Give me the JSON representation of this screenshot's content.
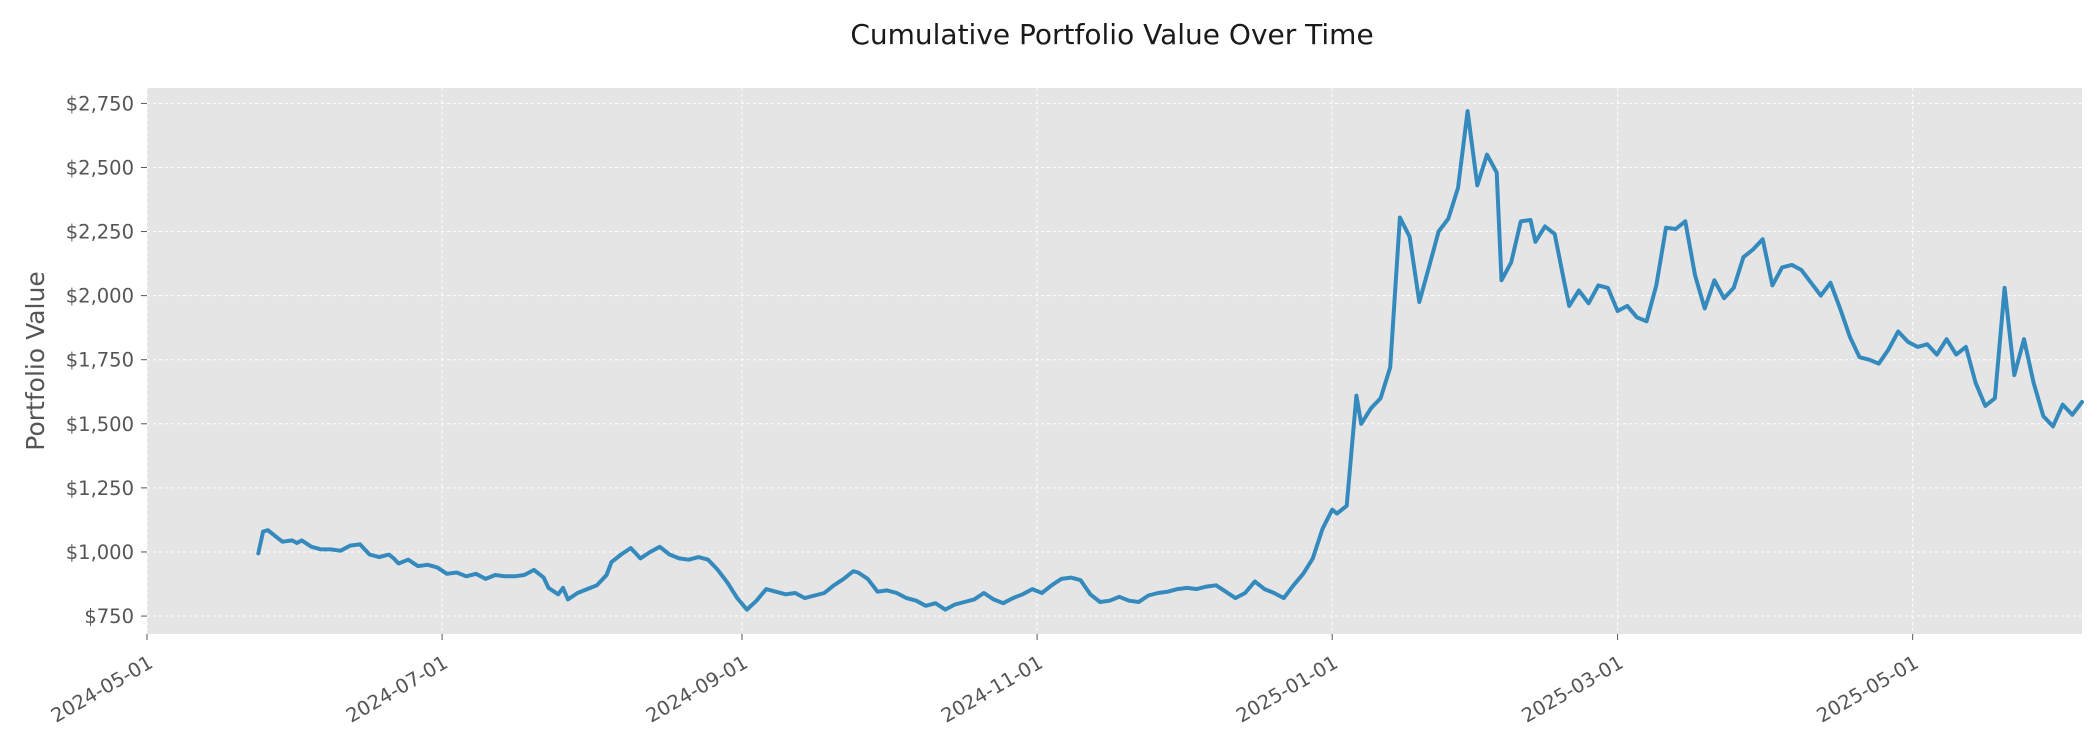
{
  "chart_data": {
    "type": "line",
    "title": "Cumulative Portfolio Value Over Time",
    "xlabel": "",
    "ylabel": "Portfolio Value",
    "xlim": [
      "2024-05-01",
      "2025-06-05"
    ],
    "ylim": [
      680,
      2810
    ],
    "x_ticks": [
      "2024-05-01",
      "2024-07-01",
      "2024-09-01",
      "2024-11-01",
      "2025-01-01",
      "2025-03-01",
      "2025-05-01"
    ],
    "y_ticks": [
      750,
      1000,
      1250,
      1500,
      1750,
      2000,
      2250,
      2500,
      2750
    ],
    "y_tick_labels": [
      "$750",
      "$1,000",
      "$1,250",
      "$1,500",
      "$1,750",
      "$2,000",
      "$2,250",
      "$2,500",
      "$2,750"
    ],
    "grid": true,
    "background": "#e5e5e5",
    "series": [
      {
        "color": "#348abd",
        "points": [
          [
            "2024-05-24",
            995
          ],
          [
            "2024-05-25",
            1080
          ],
          [
            "2024-05-26",
            1085
          ],
          [
            "2024-05-28",
            1055
          ],
          [
            "2024-05-29",
            1040
          ],
          [
            "2024-05-31",
            1045
          ],
          [
            "2024-06-01",
            1035
          ],
          [
            "2024-06-02",
            1045
          ],
          [
            "2024-06-04",
            1020
          ],
          [
            "2024-06-06",
            1010
          ],
          [
            "2024-06-08",
            1010
          ],
          [
            "2024-06-10",
            1005
          ],
          [
            "2024-06-12",
            1025
          ],
          [
            "2024-06-14",
            1030
          ],
          [
            "2024-06-16",
            990
          ],
          [
            "2024-06-18",
            980
          ],
          [
            "2024-06-20",
            990
          ],
          [
            "2024-06-21",
            975
          ],
          [
            "2024-06-22",
            955
          ],
          [
            "2024-06-24",
            970
          ],
          [
            "2024-06-26",
            945
          ],
          [
            "2024-06-28",
            950
          ],
          [
            "2024-06-30",
            940
          ],
          [
            "2024-07-02",
            915
          ],
          [
            "2024-07-04",
            920
          ],
          [
            "2024-07-06",
            905
          ],
          [
            "2024-07-08",
            915
          ],
          [
            "2024-07-10",
            895
          ],
          [
            "2024-07-12",
            910
          ],
          [
            "2024-07-14",
            905
          ],
          [
            "2024-07-16",
            905
          ],
          [
            "2024-07-18",
            910
          ],
          [
            "2024-07-20",
            930
          ],
          [
            "2024-07-22",
            900
          ],
          [
            "2024-07-23",
            860
          ],
          [
            "2024-07-25",
            835
          ],
          [
            "2024-07-26",
            860
          ],
          [
            "2024-07-27",
            815
          ],
          [
            "2024-07-29",
            840
          ],
          [
            "2024-07-31",
            855
          ],
          [
            "2024-08-02",
            870
          ],
          [
            "2024-08-04",
            910
          ],
          [
            "2024-08-05",
            960
          ],
          [
            "2024-08-07",
            990
          ],
          [
            "2024-08-09",
            1015
          ],
          [
            "2024-08-11",
            975
          ],
          [
            "2024-08-13",
            1000
          ],
          [
            "2024-08-15",
            1020
          ],
          [
            "2024-08-17",
            990
          ],
          [
            "2024-08-19",
            975
          ],
          [
            "2024-08-21",
            970
          ],
          [
            "2024-08-23",
            980
          ],
          [
            "2024-08-25",
            970
          ],
          [
            "2024-08-27",
            930
          ],
          [
            "2024-08-29",
            880
          ],
          [
            "2024-08-31",
            820
          ],
          [
            "2024-09-02",
            775
          ],
          [
            "2024-09-04",
            810
          ],
          [
            "2024-09-06",
            855
          ],
          [
            "2024-09-08",
            845
          ],
          [
            "2024-09-10",
            835
          ],
          [
            "2024-09-12",
            840
          ],
          [
            "2024-09-14",
            820
          ],
          [
            "2024-09-16",
            830
          ],
          [
            "2024-09-18",
            840
          ],
          [
            "2024-09-20",
            870
          ],
          [
            "2024-09-22",
            895
          ],
          [
            "2024-09-24",
            925
          ],
          [
            "2024-09-25",
            920
          ],
          [
            "2024-09-27",
            895
          ],
          [
            "2024-09-29",
            845
          ],
          [
            "2024-10-01",
            850
          ],
          [
            "2024-10-03",
            840
          ],
          [
            "2024-10-05",
            820
          ],
          [
            "2024-10-07",
            810
          ],
          [
            "2024-10-09",
            790
          ],
          [
            "2024-10-11",
            800
          ],
          [
            "2024-10-13",
            775
          ],
          [
            "2024-10-15",
            795
          ],
          [
            "2024-10-17",
            805
          ],
          [
            "2024-10-19",
            815
          ],
          [
            "2024-10-21",
            840
          ],
          [
            "2024-10-23",
            815
          ],
          [
            "2024-10-25",
            800
          ],
          [
            "2024-10-27",
            820
          ],
          [
            "2024-10-29",
            835
          ],
          [
            "2024-10-31",
            855
          ],
          [
            "2024-11-02",
            840
          ],
          [
            "2024-11-04",
            870
          ],
          [
            "2024-11-06",
            895
          ],
          [
            "2024-11-08",
            900
          ],
          [
            "2024-11-10",
            890
          ],
          [
            "2024-11-12",
            835
          ],
          [
            "2024-11-14",
            805
          ],
          [
            "2024-11-16",
            810
          ],
          [
            "2024-11-18",
            825
          ],
          [
            "2024-11-20",
            810
          ],
          [
            "2024-11-22",
            805
          ],
          [
            "2024-11-24",
            830
          ],
          [
            "2024-11-26",
            840
          ],
          [
            "2024-11-28",
            845
          ],
          [
            "2024-11-30",
            855
          ],
          [
            "2024-12-02",
            860
          ],
          [
            "2024-12-04",
            855
          ],
          [
            "2024-12-06",
            865
          ],
          [
            "2024-12-08",
            870
          ],
          [
            "2024-12-10",
            845
          ],
          [
            "2024-12-12",
            820
          ],
          [
            "2024-12-14",
            840
          ],
          [
            "2024-12-16",
            885
          ],
          [
            "2024-12-18",
            855
          ],
          [
            "2024-12-20",
            840
          ],
          [
            "2024-12-22",
            820
          ],
          [
            "2024-12-24",
            870
          ],
          [
            "2024-12-26",
            915
          ],
          [
            "2024-12-28",
            975
          ],
          [
            "2024-12-30",
            1090
          ],
          [
            "2025-01-01",
            1165
          ],
          [
            "2025-01-02",
            1150
          ],
          [
            "2025-01-04",
            1180
          ],
          [
            "2025-01-06",
            1610
          ],
          [
            "2025-01-07",
            1500
          ],
          [
            "2025-01-09",
            1560
          ],
          [
            "2025-01-11",
            1600
          ],
          [
            "2025-01-13",
            1720
          ],
          [
            "2025-01-15",
            2305
          ],
          [
            "2025-01-17",
            2230
          ],
          [
            "2025-01-19",
            1975
          ],
          [
            "2025-01-21",
            2110
          ],
          [
            "2025-01-23",
            2250
          ],
          [
            "2025-01-25",
            2300
          ],
          [
            "2025-01-27",
            2420
          ],
          [
            "2025-01-29",
            2720
          ],
          [
            "2025-01-31",
            2430
          ],
          [
            "2025-02-02",
            2550
          ],
          [
            "2025-02-04",
            2480
          ],
          [
            "2025-02-05",
            2060
          ],
          [
            "2025-02-07",
            2130
          ],
          [
            "2025-02-09",
            2290
          ],
          [
            "2025-02-11",
            2295
          ],
          [
            "2025-02-12",
            2210
          ],
          [
            "2025-02-14",
            2270
          ],
          [
            "2025-02-16",
            2240
          ],
          [
            "2025-02-18",
            2050
          ],
          [
            "2025-02-19",
            1960
          ],
          [
            "2025-02-21",
            2020
          ],
          [
            "2025-02-23",
            1970
          ],
          [
            "2025-02-25",
            2040
          ],
          [
            "2025-02-27",
            2030
          ],
          [
            "2025-03-01",
            1940
          ],
          [
            "2025-03-03",
            1960
          ],
          [
            "2025-03-05",
            1915
          ],
          [
            "2025-03-07",
            1900
          ],
          [
            "2025-03-09",
            2040
          ],
          [
            "2025-03-11",
            2265
          ],
          [
            "2025-03-13",
            2260
          ],
          [
            "2025-03-15",
            2290
          ],
          [
            "2025-03-17",
            2080
          ],
          [
            "2025-03-19",
            1950
          ],
          [
            "2025-03-21",
            2060
          ],
          [
            "2025-03-23",
            1990
          ],
          [
            "2025-03-25",
            2030
          ],
          [
            "2025-03-27",
            2150
          ],
          [
            "2025-03-29",
            2180
          ],
          [
            "2025-03-31",
            2220
          ],
          [
            "2025-04-02",
            2040
          ],
          [
            "2025-04-04",
            2110
          ],
          [
            "2025-04-06",
            2120
          ],
          [
            "2025-04-08",
            2100
          ],
          [
            "2025-04-10",
            2050
          ],
          [
            "2025-04-12",
            2000
          ],
          [
            "2025-04-14",
            2050
          ],
          [
            "2025-04-16",
            1950
          ],
          [
            "2025-04-18",
            1840
          ],
          [
            "2025-04-20",
            1760
          ],
          [
            "2025-04-22",
            1750
          ],
          [
            "2025-04-24",
            1735
          ],
          [
            "2025-04-26",
            1790
          ],
          [
            "2025-04-28",
            1860
          ],
          [
            "2025-04-30",
            1820
          ],
          [
            "2025-05-02",
            1800
          ],
          [
            "2025-05-04",
            1810
          ],
          [
            "2025-05-06",
            1770
          ],
          [
            "2025-05-08",
            1830
          ],
          [
            "2025-05-10",
            1770
          ],
          [
            "2025-05-12",
            1800
          ],
          [
            "2025-05-14",
            1660
          ],
          [
            "2025-05-16",
            1570
          ],
          [
            "2025-05-18",
            1600
          ],
          [
            "2025-05-20",
            2030
          ],
          [
            "2025-05-22",
            1690
          ],
          [
            "2025-05-24",
            1830
          ],
          [
            "2025-05-26",
            1660
          ],
          [
            "2025-05-28",
            1530
          ],
          [
            "2025-05-30",
            1490
          ],
          [
            "2025-06-01",
            1575
          ],
          [
            "2025-06-03",
            1535
          ],
          [
            "2025-06-05",
            1585
          ]
        ]
      }
    ]
  }
}
